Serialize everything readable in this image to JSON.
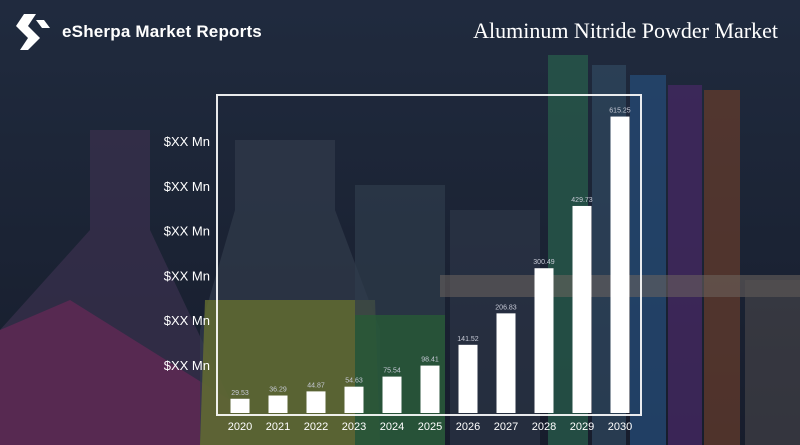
{
  "brand": {
    "name": "eSherpa Market Reports",
    "logo_icon": "esherpa-logo-icon"
  },
  "title": "Aluminum Nitride Powder Market",
  "chart_data": {
    "type": "bar",
    "title": "Aluminum Nitride Powder Market",
    "categories": [
      "2020",
      "2021",
      "2022",
      "2023",
      "2024",
      "2025",
      "2026",
      "2027",
      "2028",
      "2029",
      "2030"
    ],
    "values": [
      29.53,
      36.29,
      44.87,
      54.63,
      75.54,
      98.41,
      141.52,
      206.83,
      300.49,
      429.73,
      615.25
    ],
    "data_labels": [
      "29.53",
      "36.29",
      "44.87",
      "54.63",
      "75.54",
      "98.41",
      "141.52",
      "206.83",
      "300.49",
      "429.73",
      "615.25"
    ],
    "y_tick_labels": [
      "$XX Mn",
      "$XX Mn",
      "$XX Mn",
      "$XX Mn",
      "$XX Mn",
      "$XX Mn"
    ],
    "xlabel": "",
    "ylabel": "",
    "ylim": [
      0,
      660
    ],
    "grid": false,
    "bar_color": "#ffffff"
  }
}
